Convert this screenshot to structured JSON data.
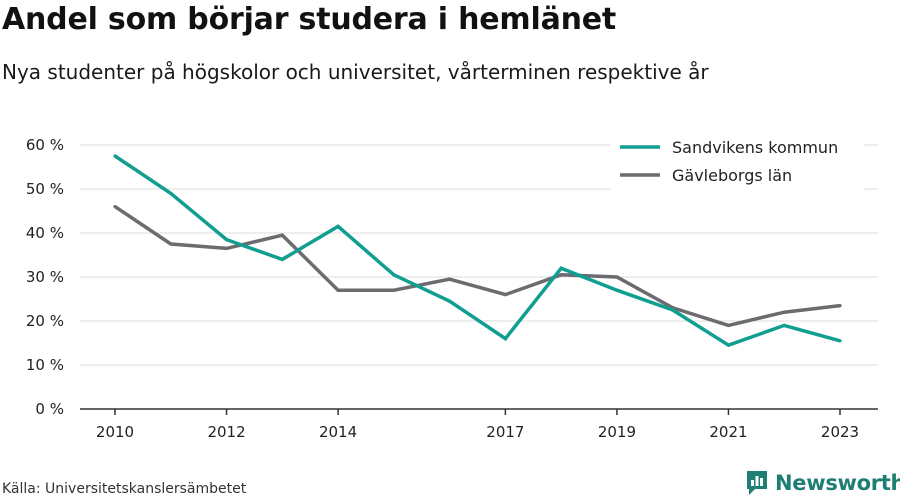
{
  "header": {
    "title": "Andel som börjar studera i hemlänet",
    "subtitle": "Nya studenter på högskolor och universitet, vårterminen respektive år"
  },
  "footer": {
    "source": "Källa: Universitetskanslersämbetet",
    "brand": "Newsworthy"
  },
  "colors": {
    "sandviken": "#0f9e8f",
    "gavleborg": "#6c6b70",
    "grid": "#dcdcdc",
    "axis": "#333333",
    "brand": "#1f7e74"
  },
  "chart_data": {
    "type": "line",
    "x": [
      2010,
      2011,
      2012,
      2013,
      2014,
      2015,
      2016,
      2017,
      2018,
      2019,
      2020,
      2021,
      2022,
      2023
    ],
    "x_ticks": [
      2010,
      2012,
      2014,
      2017,
      2019,
      2021,
      2023
    ],
    "y_ticks": [
      0,
      10,
      20,
      30,
      40,
      50,
      60
    ],
    "y_tick_suffix": " %",
    "ylim": [
      0,
      60
    ],
    "grid": true,
    "legend_position": "top-right",
    "series": [
      {
        "name": "Sandvikens kommun",
        "color": "#0f9e8f",
        "values": [
          57.5,
          49.0,
          38.5,
          34.0,
          41.5,
          30.5,
          24.5,
          16.0,
          32.0,
          27.0,
          22.5,
          14.5,
          19.0,
          15.5
        ]
      },
      {
        "name": "Gävleborgs län",
        "color": "#6c6b70",
        "values": [
          46.0,
          37.5,
          36.5,
          39.5,
          27.0,
          27.0,
          29.5,
          26.0,
          30.5,
          30.0,
          23.0,
          19.0,
          22.0,
          23.5
        ]
      }
    ]
  }
}
